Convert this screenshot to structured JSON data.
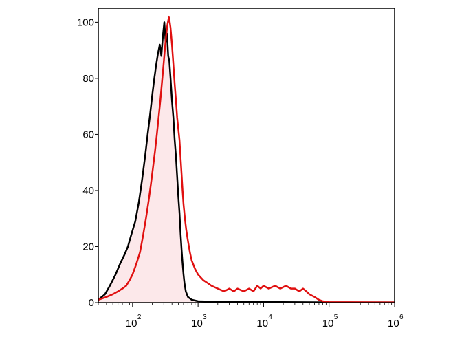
{
  "chart_data": {
    "type": "area",
    "title": "",
    "xlabel": "",
    "ylabel": "",
    "x_scale": "log",
    "xlim": [
      30,
      1000000
    ],
    "ylim": [
      0,
      105
    ],
    "grid": false,
    "legend": "none",
    "x_ticks": [
      {
        "value": 100,
        "base": "10",
        "exp": "2"
      },
      {
        "value": 1000,
        "base": "10",
        "exp": "3"
      },
      {
        "value": 10000,
        "base": "10",
        "exp": "4"
      },
      {
        "value": 100000,
        "base": "10",
        "exp": "5"
      },
      {
        "value": 1000000,
        "base": "10",
        "exp": "6"
      }
    ],
    "y_ticks": [
      {
        "value": 0,
        "label": "0"
      },
      {
        "value": 20,
        "label": "20"
      },
      {
        "value": 40,
        "label": "40"
      },
      {
        "value": 60,
        "label": "60"
      },
      {
        "value": 80,
        "label": "80"
      },
      {
        "value": 100,
        "label": "100"
      }
    ],
    "series": [
      {
        "color": "#000000",
        "fill": "#fce8ea",
        "points": [
          [
            30,
            1
          ],
          [
            38,
            3
          ],
          [
            45,
            6
          ],
          [
            55,
            10
          ],
          [
            65,
            14
          ],
          [
            75,
            17
          ],
          [
            85,
            20
          ],
          [
            95,
            24
          ],
          [
            110,
            29
          ],
          [
            125,
            36
          ],
          [
            140,
            44
          ],
          [
            155,
            52
          ],
          [
            170,
            60
          ],
          [
            185,
            67
          ],
          [
            200,
            74
          ],
          [
            215,
            80
          ],
          [
            230,
            85
          ],
          [
            245,
            89
          ],
          [
            260,
            92
          ],
          [
            275,
            88
          ],
          [
            290,
            95
          ],
          [
            305,
            100
          ],
          [
            320,
            93
          ],
          [
            335,
            96
          ],
          [
            350,
            88
          ],
          [
            365,
            86
          ],
          [
            380,
            80
          ],
          [
            400,
            72
          ],
          [
            420,
            66
          ],
          [
            440,
            58
          ],
          [
            460,
            52
          ],
          [
            480,
            45
          ],
          [
            500,
            38
          ],
          [
            520,
            32
          ],
          [
            540,
            25
          ],
          [
            560,
            19
          ],
          [
            580,
            14
          ],
          [
            600,
            10
          ],
          [
            620,
            7
          ],
          [
            650,
            4
          ],
          [
            700,
            2
          ],
          [
            800,
            1
          ],
          [
            1000,
            0.5
          ],
          [
            2000,
            0.3
          ],
          [
            5000,
            0.2
          ],
          [
            20000,
            0.2
          ],
          [
            100000,
            0.1
          ],
          [
            1000000,
            0.1
          ]
        ]
      },
      {
        "color": "#e01010",
        "fill": "none",
        "points": [
          [
            30,
            1
          ],
          [
            40,
            2
          ],
          [
            50,
            3
          ],
          [
            60,
            4
          ],
          [
            70,
            5
          ],
          [
            80,
            6
          ],
          [
            90,
            8
          ],
          [
            100,
            10
          ],
          [
            115,
            14
          ],
          [
            130,
            18
          ],
          [
            145,
            24
          ],
          [
            160,
            30
          ],
          [
            175,
            36
          ],
          [
            190,
            42
          ],
          [
            205,
            48
          ],
          [
            220,
            54
          ],
          [
            235,
            60
          ],
          [
            250,
            66
          ],
          [
            265,
            72
          ],
          [
            280,
            78
          ],
          [
            295,
            84
          ],
          [
            310,
            90
          ],
          [
            325,
            95
          ],
          [
            340,
            99
          ],
          [
            360,
            102
          ],
          [
            380,
            98
          ],
          [
            400,
            92
          ],
          [
            420,
            85
          ],
          [
            440,
            78
          ],
          [
            460,
            72
          ],
          [
            480,
            66
          ],
          [
            500,
            62
          ],
          [
            520,
            58
          ],
          [
            540,
            52
          ],
          [
            560,
            46
          ],
          [
            580,
            40
          ],
          [
            600,
            35
          ],
          [
            630,
            30
          ],
          [
            660,
            26
          ],
          [
            700,
            22
          ],
          [
            750,
            18
          ],
          [
            800,
            15
          ],
          [
            900,
            12
          ],
          [
            1000,
            10
          ],
          [
            1200,
            8
          ],
          [
            1400,
            7
          ],
          [
            1600,
            6
          ],
          [
            2000,
            5
          ],
          [
            2500,
            4
          ],
          [
            3000,
            5
          ],
          [
            3500,
            4
          ],
          [
            4000,
            5
          ],
          [
            5000,
            4
          ],
          [
            6000,
            5
          ],
          [
            7000,
            4
          ],
          [
            8000,
            6
          ],
          [
            9000,
            5
          ],
          [
            10000,
            6
          ],
          [
            12000,
            5
          ],
          [
            15000,
            6
          ],
          [
            18000,
            5
          ],
          [
            22000,
            6
          ],
          [
            26000,
            5
          ],
          [
            30000,
            5
          ],
          [
            35000,
            4
          ],
          [
            40000,
            5
          ],
          [
            45000,
            4
          ],
          [
            50000,
            3
          ],
          [
            60000,
            2
          ],
          [
            70000,
            1
          ],
          [
            80000,
            0.5
          ],
          [
            100000,
            0.2
          ],
          [
            1000000,
            0.1
          ]
        ]
      }
    ]
  }
}
